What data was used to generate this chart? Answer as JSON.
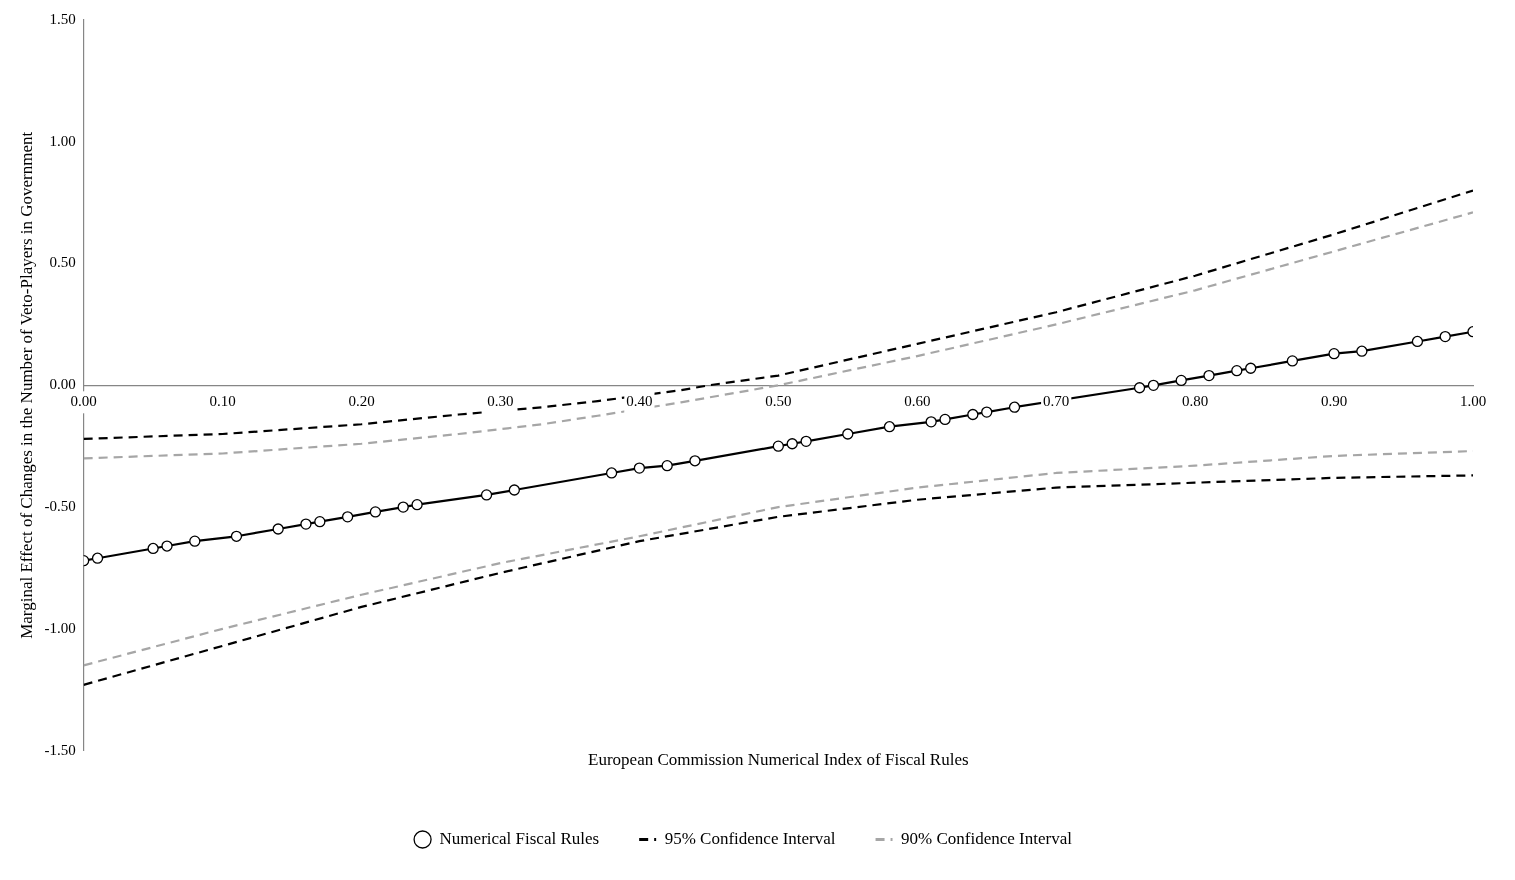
{
  "chart_data": {
    "type": "line",
    "ylabel": "Marginal Effect of Changes in the Number of Veto-Players in Government",
    "xlabel": "European Commission Numerical Index of Fiscal Rules",
    "xlim": [
      0,
      1
    ],
    "xticks": [
      {
        "value": 0,
        "label": "0.00"
      },
      {
        "value": 0.1,
        "label": "0.10"
      },
      {
        "value": 0.2,
        "label": "0.20"
      },
      {
        "value": 0.3,
        "label": "0.30"
      },
      {
        "value": 0.4,
        "label": "0.40"
      },
      {
        "value": 0.5,
        "label": "0.50"
      },
      {
        "value": 0.6,
        "label": "0.60"
      },
      {
        "value": 0.7,
        "label": "0.70"
      },
      {
        "value": 0.8,
        "label": "0.80"
      },
      {
        "value": 0.9,
        "label": "0.90"
      },
      {
        "value": 1,
        "label": "1.00"
      }
    ],
    "ylim": [
      -1.5,
      1.5
    ],
    "yticks": [
      {
        "value": -1.5,
        "label": "-1.50"
      },
      {
        "value": -1,
        "label": "-1.00"
      },
      {
        "value": -0.5,
        "label": "-0.50"
      },
      {
        "value": 0,
        "label": "0.00"
      },
      {
        "value": 0.5,
        "label": "0.50"
      },
      {
        "value": 1,
        "label": "1.00"
      },
      {
        "value": 1.5,
        "label": "1.50"
      }
    ],
    "grid": false,
    "legend": "bottom",
    "series": [
      {
        "name": "Numerical Fiscal Rules",
        "color": "#000000",
        "marker": "circle",
        "line_style": "solid",
        "x": [
          0,
          0.01,
          0.05,
          0.06,
          0.08,
          0.11,
          0.14,
          0.16,
          0.17,
          0.19,
          0.21,
          0.23,
          0.24,
          0.29,
          0.31,
          0.38,
          0.4,
          0.42,
          0.44,
          0.5,
          0.51,
          0.52,
          0.55,
          0.58,
          0.61,
          0.62,
          0.64,
          0.65,
          0.67,
          0.76,
          0.77,
          0.79,
          0.81,
          0.83,
          0.84,
          0.87,
          0.9,
          0.92,
          0.96,
          0.98,
          1
        ],
        "values": [
          -0.72,
          -0.71,
          -0.67,
          -0.66,
          -0.64,
          -0.62,
          -0.59,
          -0.57,
          -0.56,
          -0.54,
          -0.52,
          -0.5,
          -0.49,
          -0.45,
          -0.43,
          -0.36,
          -0.34,
          -0.33,
          -0.31,
          -0.25,
          -0.24,
          -0.23,
          -0.2,
          -0.17,
          -0.15,
          -0.14,
          -0.12,
          -0.11,
          -0.09,
          -0.01,
          0,
          0.02,
          0.04,
          0.06,
          0.07,
          0.1,
          0.13,
          0.14,
          0.18,
          0.2,
          0.22
        ]
      },
      {
        "name": "95% Confidence Interval",
        "color": "#000000",
        "marker": "none",
        "line_style": "dashed",
        "x": [
          0,
          0.1,
          0.2,
          0.27,
          0.33,
          0.37,
          0.43,
          0.45,
          0.5,
          0.6,
          0.7,
          0.8,
          0.9,
          1
        ],
        "values": [
          -0.22,
          -0.2,
          -0.16,
          -0.12,
          -0.09,
          -0.065,
          -0.02,
          0,
          0.04,
          0.17,
          0.3,
          0.45,
          0.62,
          0.8
        ]
      },
      {
        "color": "#000000",
        "marker": "none",
        "line_style": "dashed",
        "x": [
          0,
          0.1,
          0.2,
          0.3,
          0.4,
          0.5,
          0.6,
          0.7,
          0.8,
          0.9,
          1
        ],
        "values": [
          -1.23,
          -1.07,
          -0.91,
          -0.77,
          -0.64,
          -0.54,
          -0.47,
          -0.42,
          -0.4,
          -0.38,
          -0.37
        ]
      },
      {
        "name": "90% Confidence Interval",
        "color": "#a6a6a6",
        "marker": "none",
        "line_style": "dashed",
        "x": [
          0,
          0.1,
          0.2,
          0.27,
          0.33,
          0.37,
          0.43,
          0.5,
          0.6,
          0.7,
          0.8,
          0.9,
          1
        ],
        "values": [
          -0.3,
          -0.28,
          -0.24,
          -0.2,
          -0.16,
          -0.125,
          -0.07,
          0,
          0.12,
          0.25,
          0.39,
          0.55,
          0.71
        ]
      },
      {
        "color": "#a6a6a6",
        "marker": "none",
        "line_style": "dashed",
        "x": [
          0,
          0.1,
          0.2,
          0.3,
          0.4,
          0.5,
          0.6,
          0.7,
          0.8,
          0.9,
          1
        ],
        "values": [
          -1.15,
          -1,
          -0.86,
          -0.73,
          -0.62,
          -0.5,
          -0.42,
          -0.36,
          -0.33,
          -0.29,
          -0.27
        ]
      }
    ]
  }
}
